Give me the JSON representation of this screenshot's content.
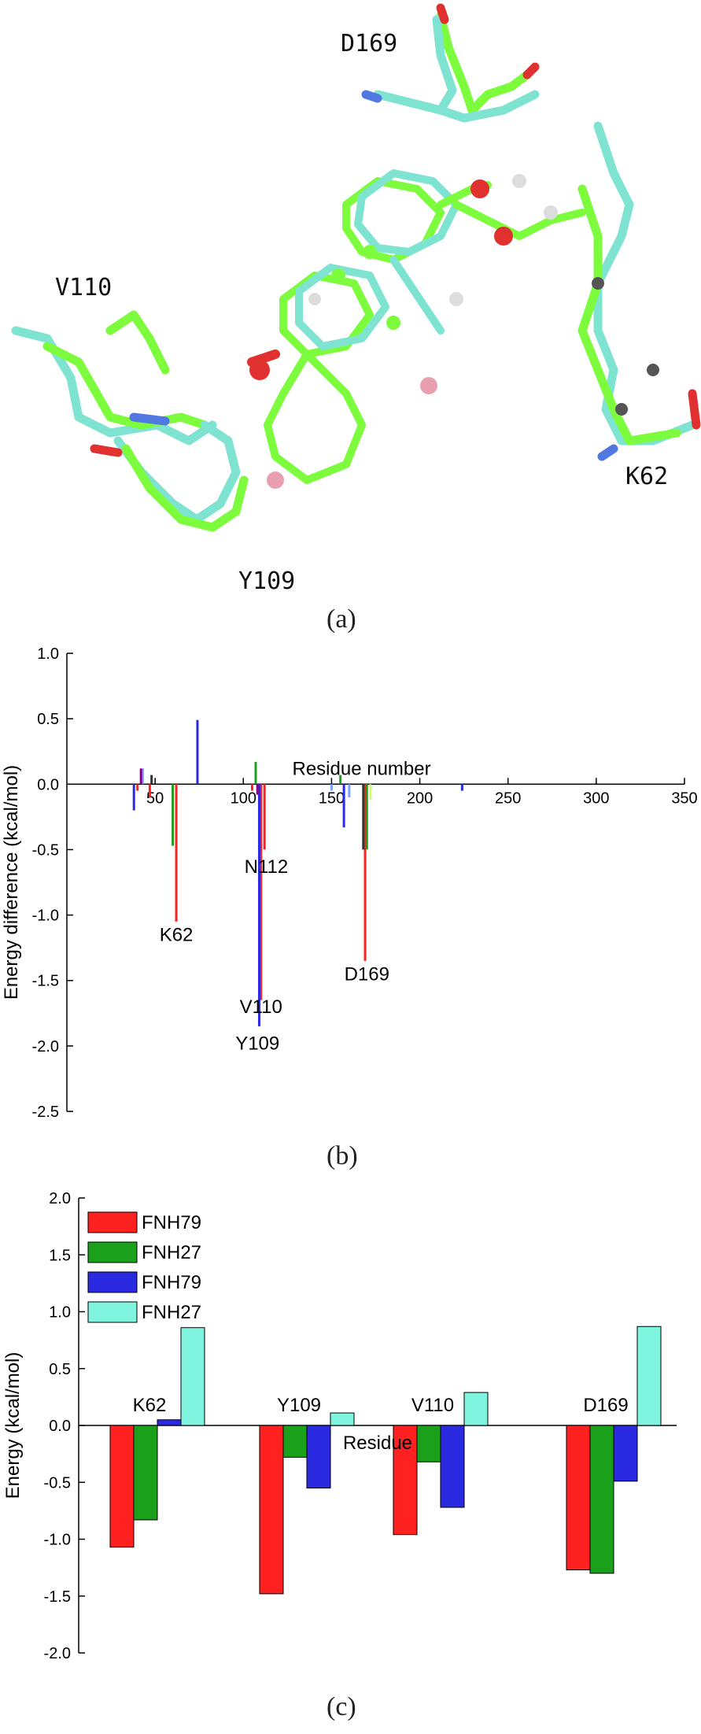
{
  "panel_a": {
    "caption": "(a)",
    "residue_labels": [
      "D169",
      "V110",
      "K62",
      "Y109"
    ]
  },
  "panel_b": {
    "caption": "(b)"
  },
  "panel_c": {
    "caption": "(c)"
  },
  "colors": {
    "red": "#ff2020",
    "green": "#1aa01a",
    "blue": "#2a2ae0",
    "cyan": "#7ff5e0",
    "lime": "#7cfc3c",
    "aqua_stick": "#7fe3d2"
  },
  "chart_data": [
    {
      "type": "bar",
      "ylabel": "Energy difference (kcal/mol)",
      "xlabel": "Residue number",
      "xlim": [
        0,
        350
      ],
      "ylim": [
        -2.5,
        1.0
      ],
      "x_ticks": [
        50,
        100,
        150,
        200,
        250,
        300,
        350
      ],
      "y_ticks": [
        1.0,
        0.5,
        0.0,
        -0.5,
        -1.0,
        -1.5,
        -2.0,
        -2.5
      ],
      "series": [
        {
          "color": "#ff2020",
          "x": [
            40,
            47,
            62,
            105,
            110,
            112,
            169
          ],
          "values": [
            -0.05,
            -0.1,
            -1.05,
            -0.05,
            -1.65,
            -0.5,
            -1.35
          ]
        },
        {
          "color": "#1aa01a",
          "x": [
            60,
            107,
            155,
            170
          ],
          "values": [
            -0.47,
            0.17,
            0.07,
            -0.5
          ]
        },
        {
          "color": "#2a2ae0",
          "x": [
            38,
            74,
            109,
            157,
            224
          ],
          "values": [
            -0.2,
            0.49,
            -1.85,
            -0.33,
            -0.05
          ]
        },
        {
          "color": "#7fa0ff",
          "x": [
            43,
            150,
            160
          ],
          "values": [
            0.12,
            -0.05,
            -0.1
          ]
        },
        {
          "color": "#800080",
          "x": [
            42,
            108
          ],
          "values": [
            0.12,
            -0.08
          ]
        },
        {
          "color": "#333333",
          "x": [
            48,
            168
          ],
          "values": [
            0.07,
            -0.5
          ]
        },
        {
          "color": "#ccff66",
          "x": [
            172
          ],
          "values": [
            -0.12
          ]
        }
      ],
      "annotations": [
        {
          "text": "K62",
          "x": 62,
          "y": -1.15
        },
        {
          "text": "N112",
          "x": 113,
          "y": -0.63
        },
        {
          "text": "V110",
          "x": 110,
          "y": -1.7
        },
        {
          "text": "Y109",
          "x": 108,
          "y": -1.98
        },
        {
          "text": "D169",
          "x": 170,
          "y": -1.45
        }
      ]
    },
    {
      "type": "bar",
      "ylabel": "Energy (kcal/mol)",
      "xlabel": "Residue",
      "categories": [
        "K62",
        "Y109",
        "V110",
        "D169"
      ],
      "ylim": [
        -2.0,
        2.0
      ],
      "y_ticks": [
        2.0,
        1.5,
        1.0,
        0.5,
        0.0,
        -0.5,
        -1.0,
        -1.5,
        -2.0
      ],
      "series": [
        {
          "name": "FNH79",
          "color": "#ff2020",
          "values": [
            -1.07,
            -1.48,
            -0.96,
            -1.27
          ]
        },
        {
          "name": "FNH27",
          "color": "#1aa01a",
          "values": [
            -0.83,
            -0.28,
            -0.32,
            -1.3
          ]
        },
        {
          "name": "FNH79",
          "color": "#2a2ae0",
          "values": [
            0.05,
            -0.55,
            -0.72,
            -0.49
          ]
        },
        {
          "name": "FNH27",
          "color": "#7ff5e0",
          "values": [
            0.86,
            0.11,
            0.29,
            0.87
          ]
        }
      ],
      "legend": "top-left"
    }
  ]
}
